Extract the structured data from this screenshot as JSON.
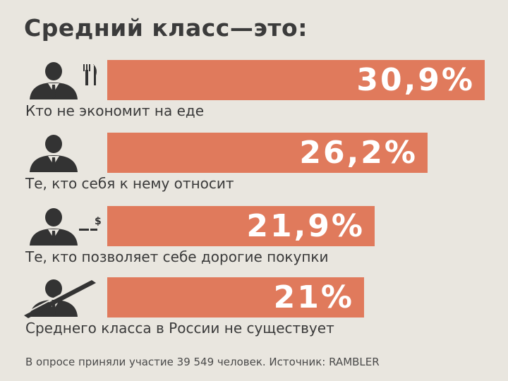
{
  "chart_data": {
    "type": "bar",
    "orientation": "horizontal",
    "title": "Средний класс—это:",
    "categories": [
      "Кто не экономит на еде",
      "Те, кто себя к нему относит",
      "Те, кто позволяет себе дорогие покупки",
      "Среднего класса в России не существует"
    ],
    "values": [
      30.9,
      26.2,
      21.9,
      21
    ],
    "value_labels": [
      "30,9%",
      "26,2%",
      "21,9%",
      "21%"
    ],
    "bar_color": "#e07a5c",
    "icons": [
      "person-fork-knife-icon",
      "person-icon",
      "person-money-icon",
      "person-crossed-out-icon"
    ]
  },
  "footer": "В опросе приняли участие 39 549 человек. Источник: RAMBLER"
}
